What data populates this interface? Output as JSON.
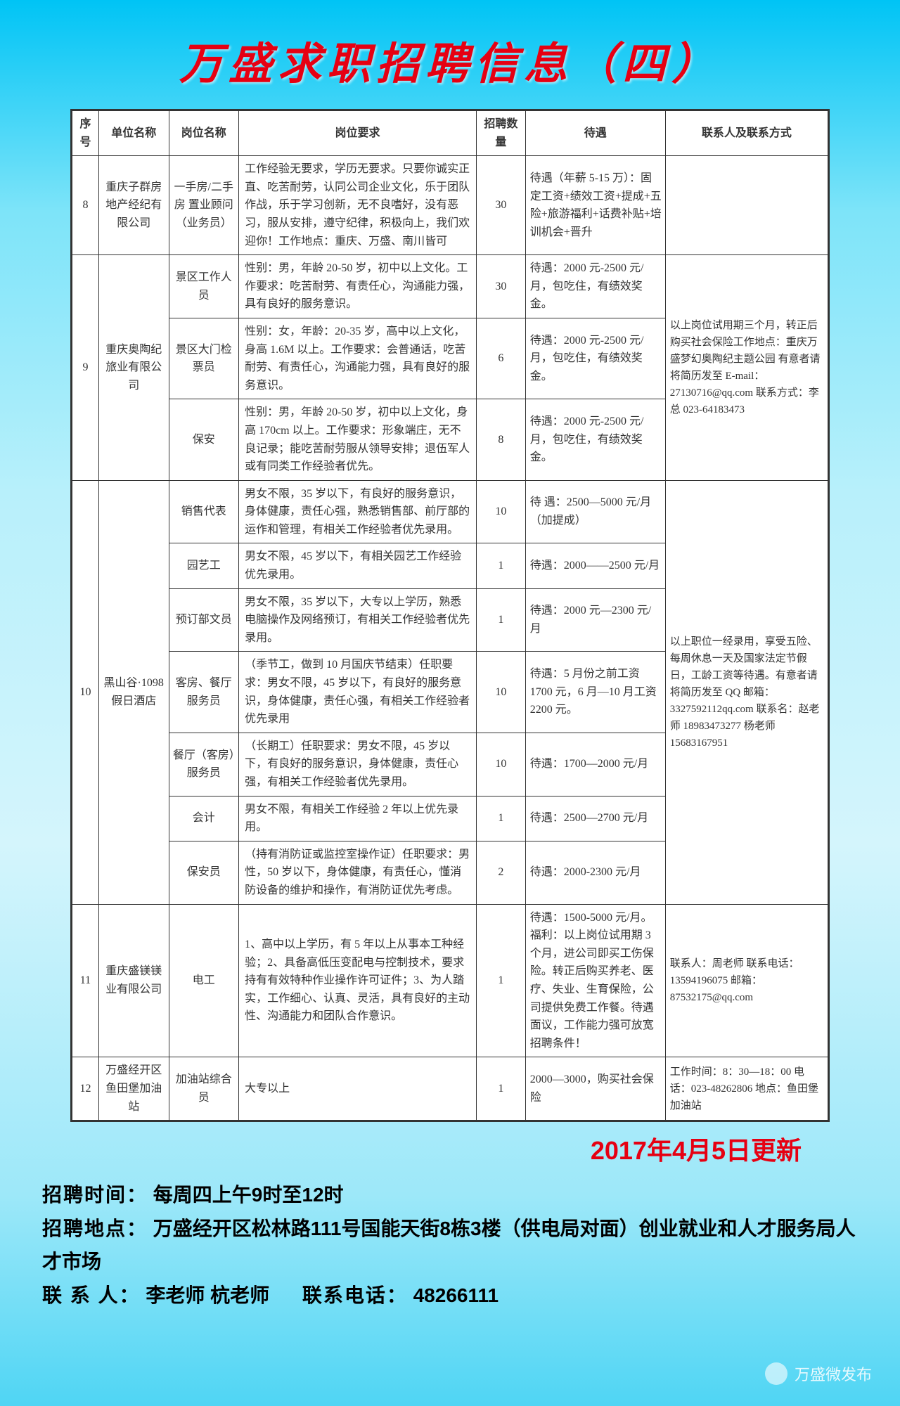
{
  "title": "万盛求职招聘信息（四）",
  "columns": [
    "序号",
    "单位名称",
    "岗位名称",
    "岗位要求",
    "招聘数量",
    "待遇",
    "联系人及联系方式"
  ],
  "rows": [
    {
      "seq": "8",
      "company": "重庆子群房地产经纪有限公司",
      "positions": [
        {
          "name": "一手房/二手房 置业顾问（业务员）",
          "req": "工作经验无要求，学历无要求。只要你诚实正直、吃苦耐劳，认同公司企业文化，乐于团队作战，乐于学习创新，无不良嗜好，没有恶习，服从安排，遵守纪律，积极向上，我们欢迎你！工作地点：重庆、万盛、南川皆可",
          "num": "30",
          "treat": "待遇（年薪 5-15 万）：固定工资+绩效工资+提成+五险+旅游福利+话费补贴+培训机会+晋升"
        }
      ],
      "contact": ""
    },
    {
      "seq": "9",
      "company": "重庆奥陶纪旅业有限公司",
      "positions": [
        {
          "name": "景区工作人员",
          "req": "性别：男，年龄 20-50 岁，初中以上文化。工作要求：吃苦耐劳、有责任心，沟通能力强，具有良好的服务意识。",
          "num": "30",
          "treat": "待遇：2000 元-2500 元/月，包吃住，有绩效奖金。"
        },
        {
          "name": "景区大门检票员",
          "req": "性别：女，年龄：20-35 岁，高中以上文化，身高 1.6M 以上。工作要求：会普通话，吃苦耐劳、有责任心，沟通能力强，具有良好的服务意识。",
          "num": "6",
          "treat": "待遇：2000 元-2500 元/月，包吃住，有绩效奖金。"
        },
        {
          "name": "保安",
          "req": "性别：男，年龄 20-50 岁，初中以上文化，身高 170cm 以上。工作要求：形象端庄，无不良记录；能吃苦耐劳服从领导安排；退伍军人或有同类工作经验者优先。",
          "num": "8",
          "treat": "待遇：2000 元-2500 元/月，包吃住，有绩效奖金。"
        }
      ],
      "contact": "以上岗位试用期三个月，转正后购买社会保险工作地点：重庆万盛梦幻奥陶纪主题公园 有意者请将简历发至 E-mail：27130716@qq.com 联系方式：李总 023-64183473"
    },
    {
      "seq": "10",
      "company": "黑山谷·1098 假日酒店",
      "positions": [
        {
          "name": "销售代表",
          "req": "男女不限，35 岁以下，有良好的服务意识，身体健康，责任心强，熟悉销售部、前厅部的运作和管理，有相关工作经验者优先录用。",
          "num": "10",
          "treat": "待 遇：2500—5000 元/月（加提成）"
        },
        {
          "name": "园艺工",
          "req": "男女不限，45 岁以下，有相关园艺工作经验优先录用。",
          "num": "1",
          "treat": "待遇：2000——2500 元/月"
        },
        {
          "name": "预订部文员",
          "req": "男女不限，35 岁以下，大专以上学历，熟悉电脑操作及网络预订，有相关工作经验者优先录用。",
          "num": "1",
          "treat": "待遇：2000 元—2300 元/月"
        },
        {
          "name": "客房、餐厅服务员",
          "req": "（季节工，做到 10 月国庆节结束）任职要求：男女不限，45 岁以下，有良好的服务意识，身体健康，责任心强，有相关工作经验者优先录用",
          "num": "10",
          "treat": "待遇：5 月份之前工资 1700 元，6 月—10 月工资 2200 元。"
        },
        {
          "name": "餐厅（客房）服务员",
          "req": "（长期工）任职要求：男女不限，45 岁以下，有良好的服务意识，身体健康，责任心强，有相关工作经验者优先录用。",
          "num": "10",
          "treat": "待遇：1700—2000 元/月"
        },
        {
          "name": "会计",
          "req": "男女不限，有相关工作经验 2 年以上优先录用。",
          "num": "1",
          "treat": "待遇：2500—2700 元/月"
        },
        {
          "name": "保安员",
          "req": "（持有消防证或监控室操作证）任职要求：男性，50 岁以下，身体健康，有责任心，懂消防设备的维护和操作，有消防证优先考虑。",
          "num": "2",
          "treat": "待遇：2000-2300 元/月"
        }
      ],
      "contact": "以上职位一经录用，享受五险、每周休息一天及国家法定节假日，工龄工资等待遇。有意者请将简历发至 QQ 邮箱：3327592112qq.com 联系名：赵老师 18983473277 杨老师 15683167951"
    },
    {
      "seq": "11",
      "company": "重庆盛镁镁业有限公司",
      "positions": [
        {
          "name": "电工",
          "req": "1、高中以上学历，有 5 年以上从事本工种经验；2、具备高低压变配电与控制技术，要求持有有效特种作业操作许可证件；3、为人踏实，工作细心、认真、灵活，具有良好的主动性、沟通能力和团队合作意识。",
          "num": "1",
          "treat": "待遇：1500-5000 元/月。福利：以上岗位试用期 3 个月，进公司即买工伤保险。转正后购买养老、医疗、失业、生育保险，公司提供免费工作餐。待遇面议，工作能力强可放宽招聘条件！"
        }
      ],
      "contact": "联系人：周老师 联系电话：13594196075 邮箱：87532175@qq.com"
    },
    {
      "seq": "12",
      "company": "万盛经开区鱼田堡加油站",
      "positions": [
        {
          "name": "加油站综合员",
          "req": "大专以上",
          "num": "1",
          "treat": "2000—3000，购买社会保险"
        }
      ],
      "contact": "工作时间：8：30—18：00 电话：023-48262806 地点：鱼田堡加油站"
    }
  ],
  "update_date": "2017年4月5日更新",
  "footer": {
    "time_label": "招聘时间：",
    "time_value": "每周四上午9时至12时",
    "addr_label": "招聘地点：",
    "addr_value": "万盛经开区松林路111号国能天街8栋3楼（供电局对面）创业就业和人才服务局人才市场",
    "contact_label": "联 系 人：",
    "contact_value": "李老师 杭老师",
    "phone_label": "联系电话：",
    "phone_value": "48266111"
  },
  "watermark": "万盛微发布"
}
